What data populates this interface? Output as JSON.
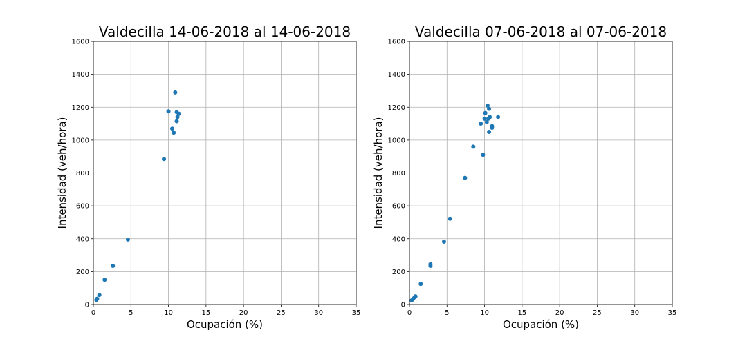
{
  "chart_data": [
    {
      "type": "scatter",
      "title": "Valdecilla 14-06-2018 al 14-06-2018",
      "xlabel": "Ocupación (%)",
      "ylabel": "Intensidad (veh/hora)",
      "xlim": [
        0,
        35
      ],
      "ylim": [
        0,
        1600
      ],
      "xticks": [
        0,
        5,
        10,
        15,
        20,
        25,
        30,
        35
      ],
      "yticks": [
        0,
        200,
        400,
        600,
        800,
        1000,
        1200,
        1400,
        1600
      ],
      "grid": true,
      "color": "#1f77b4",
      "points": [
        {
          "x": 0.4,
          "y": 28
        },
        {
          "x": 0.5,
          "y": 35
        },
        {
          "x": 0.8,
          "y": 58
        },
        {
          "x": 1.5,
          "y": 150
        },
        {
          "x": 2.6,
          "y": 235
        },
        {
          "x": 4.6,
          "y": 395
        },
        {
          "x": 9.4,
          "y": 885
        },
        {
          "x": 10.0,
          "y": 1175
        },
        {
          "x": 10.5,
          "y": 1070
        },
        {
          "x": 10.7,
          "y": 1045
        },
        {
          "x": 10.9,
          "y": 1290
        },
        {
          "x": 11.1,
          "y": 1170
        },
        {
          "x": 11.1,
          "y": 1115
        },
        {
          "x": 11.2,
          "y": 1140
        },
        {
          "x": 11.4,
          "y": 1160
        }
      ]
    },
    {
      "type": "scatter",
      "title": "Valdecilla 07-06-2018 al 07-06-2018",
      "xlabel": "Ocupación (%)",
      "ylabel": "Intensidad (veh/hora)",
      "xlim": [
        0,
        35
      ],
      "ylim": [
        0,
        1600
      ],
      "xticks": [
        0,
        5,
        10,
        15,
        20,
        25,
        30,
        35
      ],
      "yticks": [
        0,
        200,
        400,
        600,
        800,
        1000,
        1200,
        1400,
        1600
      ],
      "grid": true,
      "color": "#1f77b4",
      "points": [
        {
          "x": 0.3,
          "y": 25
        },
        {
          "x": 0.5,
          "y": 35
        },
        {
          "x": 0.7,
          "y": 45
        },
        {
          "x": 0.8,
          "y": 50
        },
        {
          "x": 1.5,
          "y": 125
        },
        {
          "x": 2.8,
          "y": 235
        },
        {
          "x": 2.8,
          "y": 245
        },
        {
          "x": 4.6,
          "y": 382
        },
        {
          "x": 5.4,
          "y": 522
        },
        {
          "x": 7.4,
          "y": 770
        },
        {
          "x": 8.5,
          "y": 960
        },
        {
          "x": 9.5,
          "y": 1100
        },
        {
          "x": 9.8,
          "y": 910
        },
        {
          "x": 10.0,
          "y": 1130
        },
        {
          "x": 10.1,
          "y": 1165
        },
        {
          "x": 10.3,
          "y": 1110
        },
        {
          "x": 10.4,
          "y": 1210
        },
        {
          "x": 10.5,
          "y": 1130
        },
        {
          "x": 10.6,
          "y": 1190
        },
        {
          "x": 10.6,
          "y": 1050
        },
        {
          "x": 10.7,
          "y": 1140
        },
        {
          "x": 11.0,
          "y": 1075
        },
        {
          "x": 11.0,
          "y": 1085
        },
        {
          "x": 11.8,
          "y": 1140
        }
      ]
    }
  ]
}
